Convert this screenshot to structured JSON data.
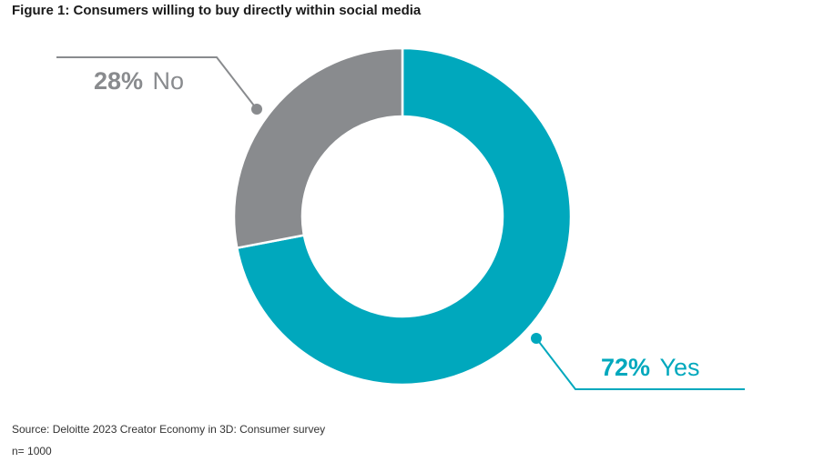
{
  "title": "Figure 1: Consumers willing to buy directly within social media",
  "source": "Source: Deloitte 2023 Creator Economy in 3D: Consumer survey",
  "sample": "n= 1000",
  "colors": {
    "yes": "#00a8bd",
    "no": "#898b8e"
  },
  "chart_data": {
    "type": "pie",
    "title": "Figure 1: Consumers willing to buy directly within social media",
    "slices": [
      {
        "label": "Yes",
        "value": 72,
        "display": "72%",
        "color": "#00a8bd"
      },
      {
        "label": "No",
        "value": 28,
        "display": "28%",
        "color": "#898b8e"
      }
    ],
    "donut": true
  }
}
